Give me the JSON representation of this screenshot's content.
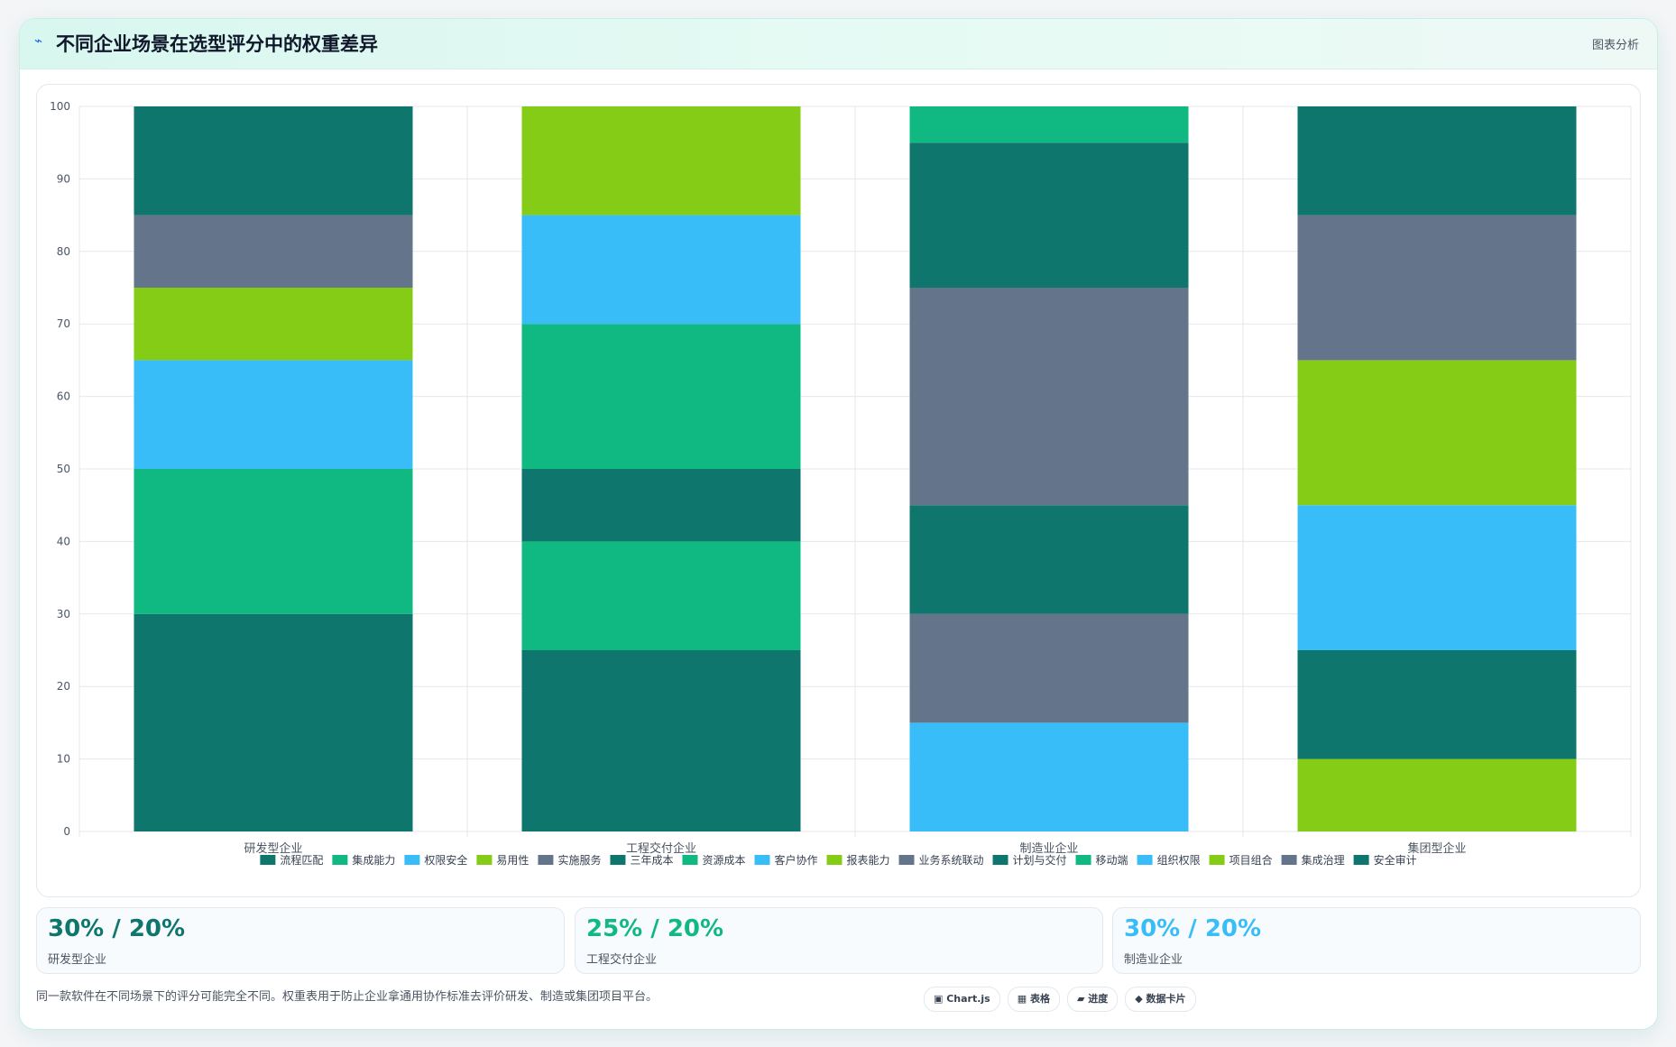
{
  "header": {
    "icon": "lightning-icon",
    "title": "不同企业场景在选型评分中的权重差异",
    "tag": "图表分析"
  },
  "chart_data": {
    "type": "bar",
    "stacked": true,
    "categories": [
      "研发型企业",
      "工程交付企业",
      "制造业企业",
      "集团型企业"
    ],
    "ylim": [
      0,
      100
    ],
    "yticks": [
      0,
      10,
      20,
      30,
      40,
      50,
      60,
      70,
      80,
      90,
      100
    ],
    "grid": true,
    "legend_position": "bottom",
    "series": [
      {
        "name": "流程匹配",
        "color": "#0f766e",
        "values": [
          30,
          0,
          0,
          0
        ]
      },
      {
        "name": "集成能力",
        "color": "#10b981",
        "values": [
          20,
          0,
          0,
          0
        ]
      },
      {
        "name": "权限安全",
        "color": "#38bdf8",
        "values": [
          15,
          0,
          0,
          0
        ]
      },
      {
        "name": "易用性",
        "color": "#84cc16",
        "values": [
          10,
          0,
          0,
          0
        ]
      },
      {
        "name": "实施服务",
        "color": "#64748b",
        "values": [
          10,
          0,
          0,
          0
        ]
      },
      {
        "name": "三年成本",
        "color": "#0f766e",
        "values": [
          15,
          25,
          0,
          0
        ]
      },
      {
        "name": "资源成本",
        "color": "#10b981",
        "values": [
          0,
          15,
          0,
          0
        ]
      },
      {
        "name": "客户协作",
        "color": "#38bdf8",
        "values": [
          0,
          0,
          15,
          0
        ]
      },
      {
        "name": "报表能力",
        "color": "#84cc16",
        "values": [
          0,
          0,
          0,
          10
        ]
      },
      {
        "name": "业务系统联动",
        "color": "#64748b",
        "values": [
          0,
          0,
          15,
          0
        ]
      },
      {
        "name": "计划与交付",
        "color": "#0f766e",
        "values": [
          0,
          10,
          15,
          15
        ]
      },
      {
        "name": "移动端",
        "color": "#10b981",
        "values": [
          0,
          20,
          0,
          0
        ]
      },
      {
        "name": "组织权限",
        "color": "#38bdf8",
        "values": [
          0,
          15,
          0,
          20
        ]
      },
      {
        "name": "项目组合",
        "color": "#84cc16",
        "values": [
          0,
          15,
          0,
          20
        ]
      },
      {
        "name": "集成治理",
        "color": "#64748b",
        "values": [
          0,
          0,
          30,
          20
        ]
      },
      {
        "name": "安全审计",
        "color": "#0f766e",
        "values": [
          0,
          0,
          20,
          15
        ]
      },
      {
        "name": "",
        "color": "#10b981",
        "values": [
          0,
          0,
          5,
          0
        ]
      }
    ],
    "segments": [
      [
        {
          "color": "#0f766e",
          "v": 30
        },
        {
          "color": "#10b981",
          "v": 20
        },
        {
          "color": "#38bdf8",
          "v": 15
        },
        {
          "color": "#84cc16",
          "v": 10
        },
        {
          "color": "#64748b",
          "v": 10
        },
        {
          "color": "#0f766e",
          "v": 15
        }
      ],
      [
        {
          "color": "#0f766e",
          "v": 25
        },
        {
          "color": "#10b981",
          "v": 15
        },
        {
          "color": "#0f766e",
          "v": 10
        },
        {
          "color": "#10b981",
          "v": 20
        },
        {
          "color": "#38bdf8",
          "v": 15
        },
        {
          "color": "#84cc16",
          "v": 15
        }
      ],
      [
        {
          "color": "#38bdf8",
          "v": 15
        },
        {
          "color": "#64748b",
          "v": 15
        },
        {
          "color": "#0f766e",
          "v": 15
        },
        {
          "color": "#64748b",
          "v": 30
        },
        {
          "color": "#0f766e",
          "v": 20
        },
        {
          "color": "#10b981",
          "v": 5
        }
      ],
      [
        {
          "color": "#84cc16",
          "v": 10
        },
        {
          "color": "#0f766e",
          "v": 15
        },
        {
          "color": "#38bdf8",
          "v": 20
        },
        {
          "color": "#84cc16",
          "v": 20
        },
        {
          "color": "#64748b",
          "v": 20
        },
        {
          "color": "#0f766e",
          "v": 15
        }
      ]
    ]
  },
  "legend": [
    {
      "name": "流程匹配",
      "color": "#0f766e"
    },
    {
      "name": "集成能力",
      "color": "#10b981"
    },
    {
      "name": "权限安全",
      "color": "#38bdf8"
    },
    {
      "name": "易用性",
      "color": "#84cc16"
    },
    {
      "name": "实施服务",
      "color": "#64748b"
    },
    {
      "name": "三年成本",
      "color": "#0f766e"
    },
    {
      "name": "资源成本",
      "color": "#10b981"
    },
    {
      "name": "客户协作",
      "color": "#38bdf8"
    },
    {
      "name": "报表能力",
      "color": "#84cc16"
    },
    {
      "name": "业务系统联动",
      "color": "#64748b"
    },
    {
      "name": "计划与交付",
      "color": "#0f766e"
    },
    {
      "name": "移动端",
      "color": "#10b981"
    },
    {
      "name": "组织权限",
      "color": "#38bdf8"
    },
    {
      "name": "项目组合",
      "color": "#84cc16"
    },
    {
      "name": "集成治理",
      "color": "#64748b"
    },
    {
      "name": "安全审计",
      "color": "#0f766e"
    }
  ],
  "stats": [
    {
      "value": "30% / 20%",
      "label": "研发型企业",
      "color": "#0f766e"
    },
    {
      "value": "25% / 20%",
      "label": "工程交付企业",
      "color": "#10b981"
    },
    {
      "value": "30% / 20%",
      "label": "制造业企业",
      "color": "#38bdf8"
    }
  ],
  "footnote": "同一款软件在不同场景下的评分可能完全不同。权重表用于防止企业拿通用协作标准去评价研发、制造或集团项目平台。",
  "pills": [
    "▣ Chart.js",
    "▦ 表格",
    "▰ 进度",
    "◆ 数据卡片"
  ]
}
